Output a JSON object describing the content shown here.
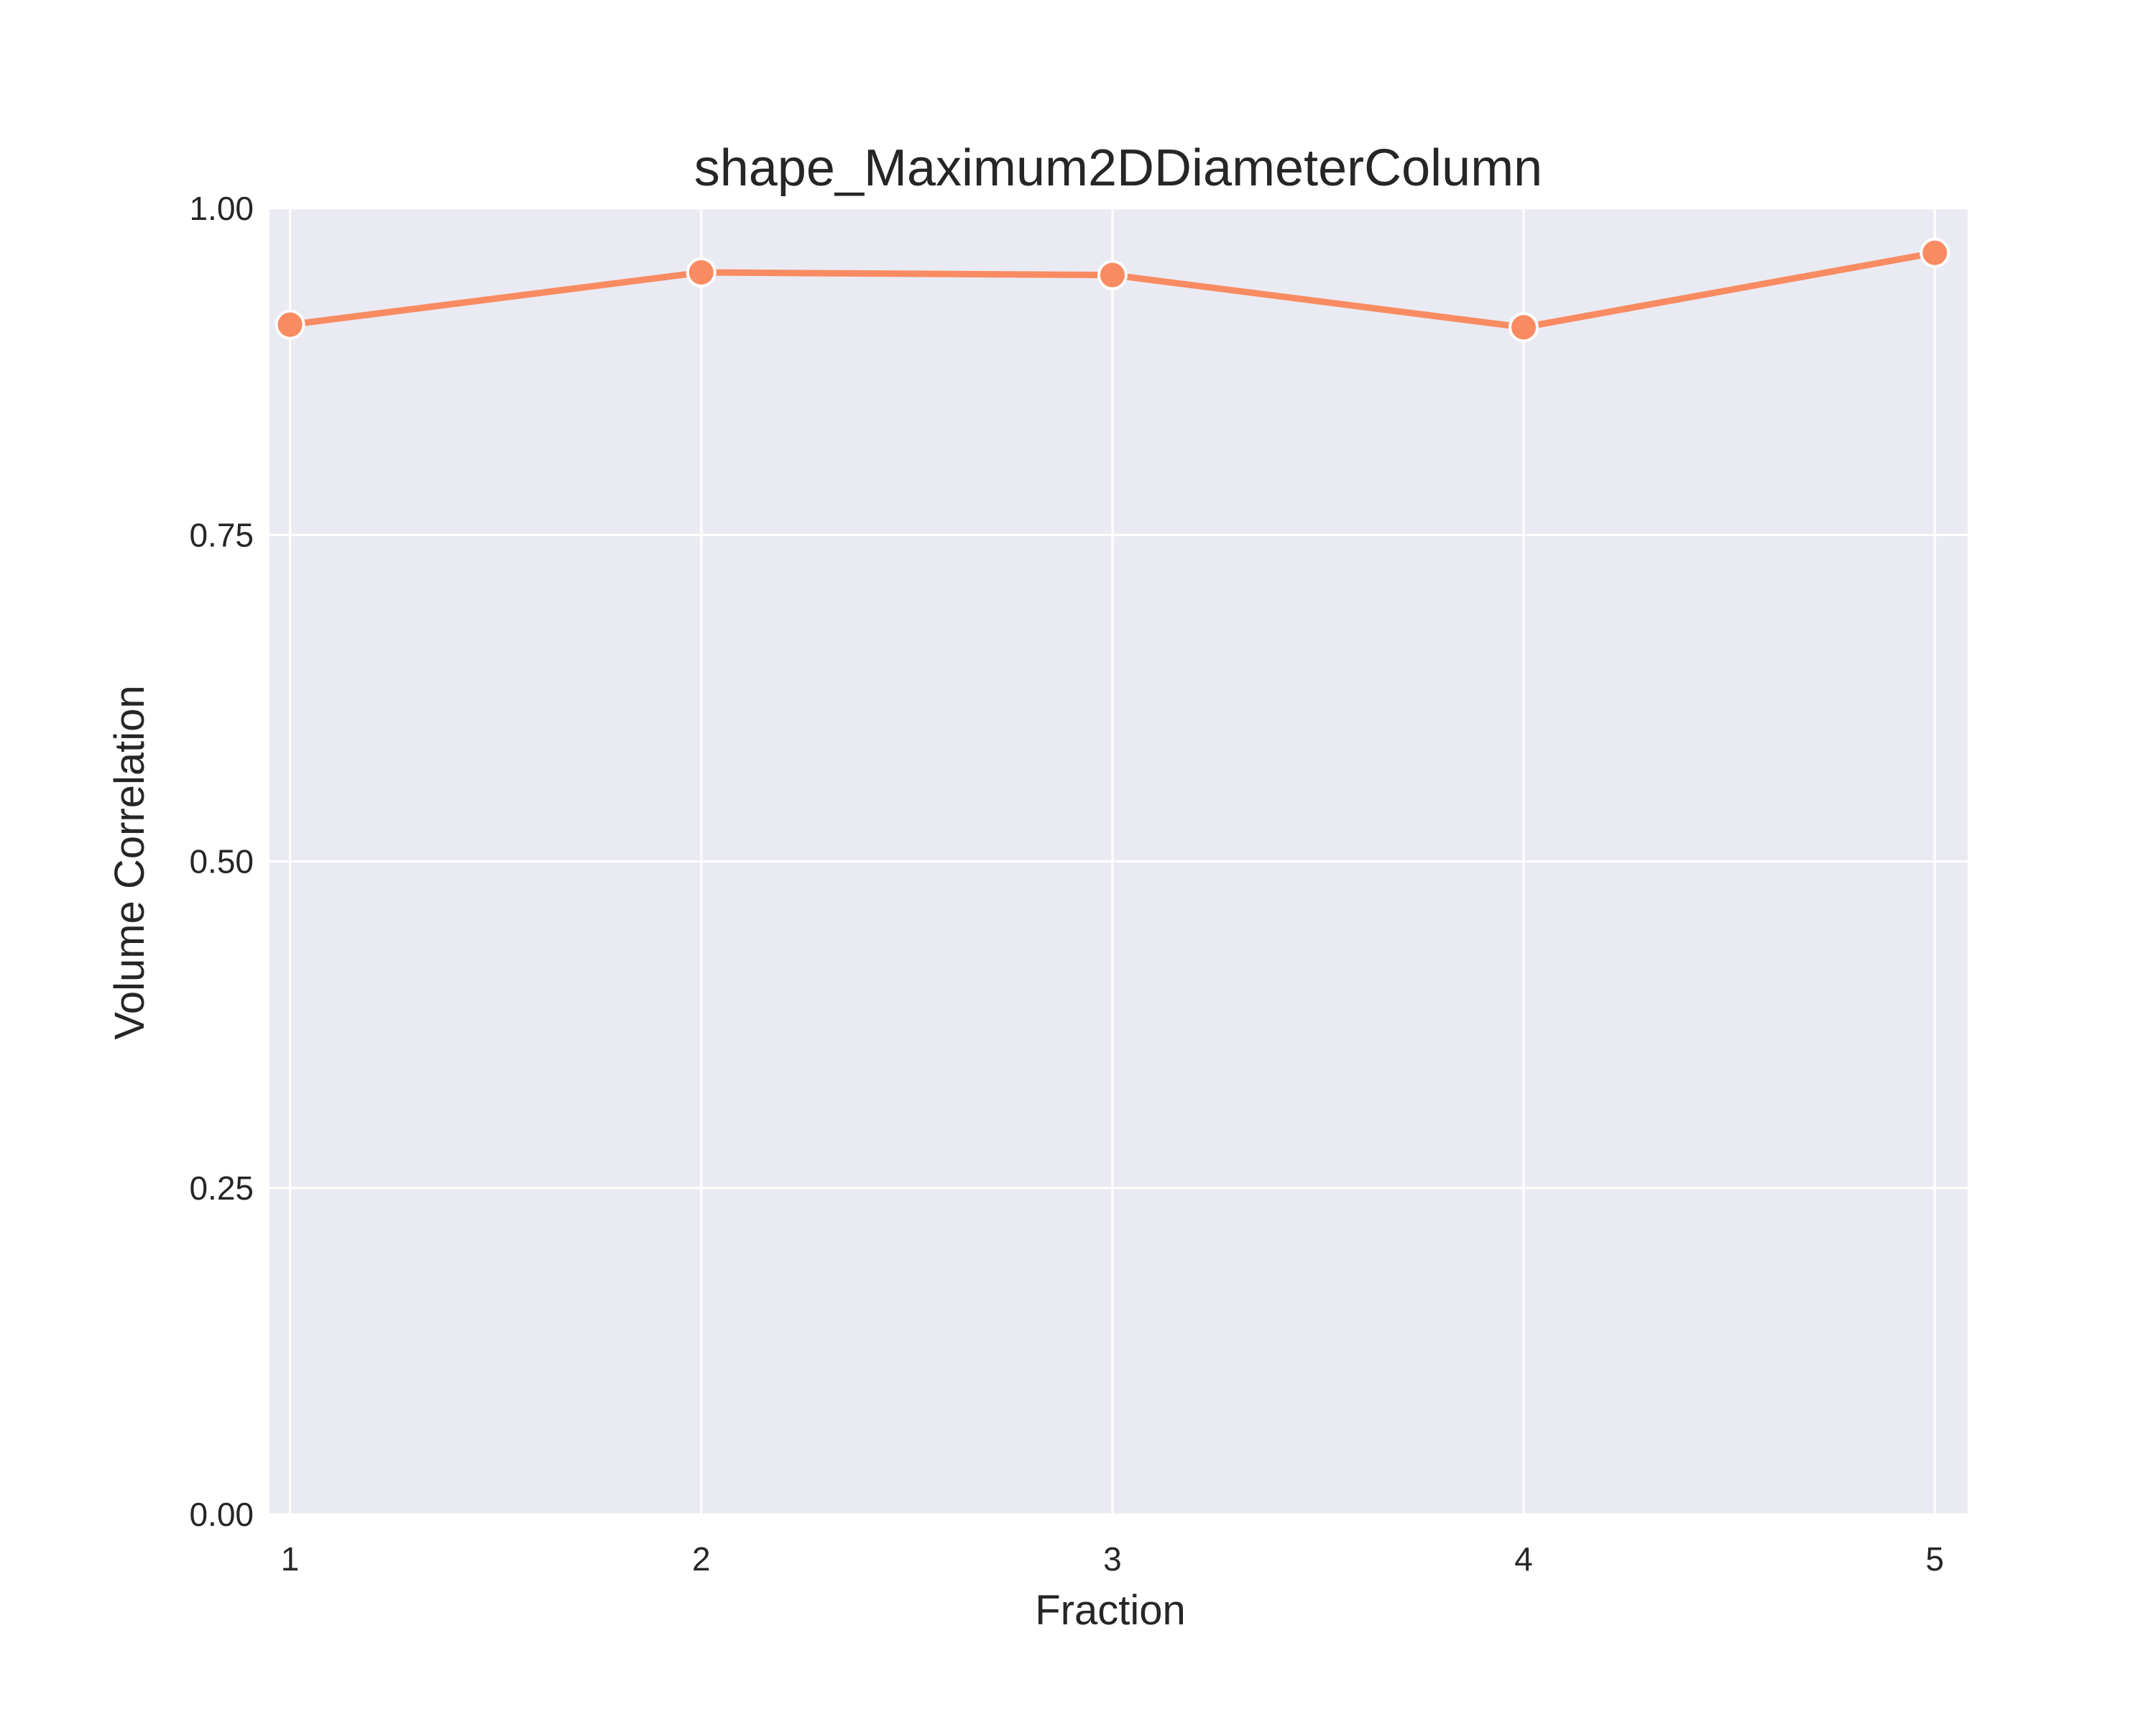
{
  "chart_data": {
    "type": "line",
    "title": "shape_Maximum2DDiameterColumn",
    "xlabel": "Fraction",
    "ylabel": "Volume Correlation",
    "x": [
      1,
      2,
      3,
      4,
      5
    ],
    "x_tick_labels": [
      "1",
      "2",
      "3",
      "4",
      "5"
    ],
    "ylim": [
      0,
      1
    ],
    "y_ticks": [
      0,
      0.25,
      0.5,
      0.75,
      1.0
    ],
    "y_tick_labels": [
      "0.00",
      "0.25",
      "0.50",
      "0.75",
      "1.00"
    ],
    "series": [
      {
        "values": [
          0.911,
          0.951,
          0.949,
          0.909,
          0.966
        ]
      }
    ],
    "colors": {
      "line": "#f98b62",
      "background": "#eaeaf2",
      "grid": "#ffffff"
    },
    "grid": true,
    "legend": "none"
  }
}
